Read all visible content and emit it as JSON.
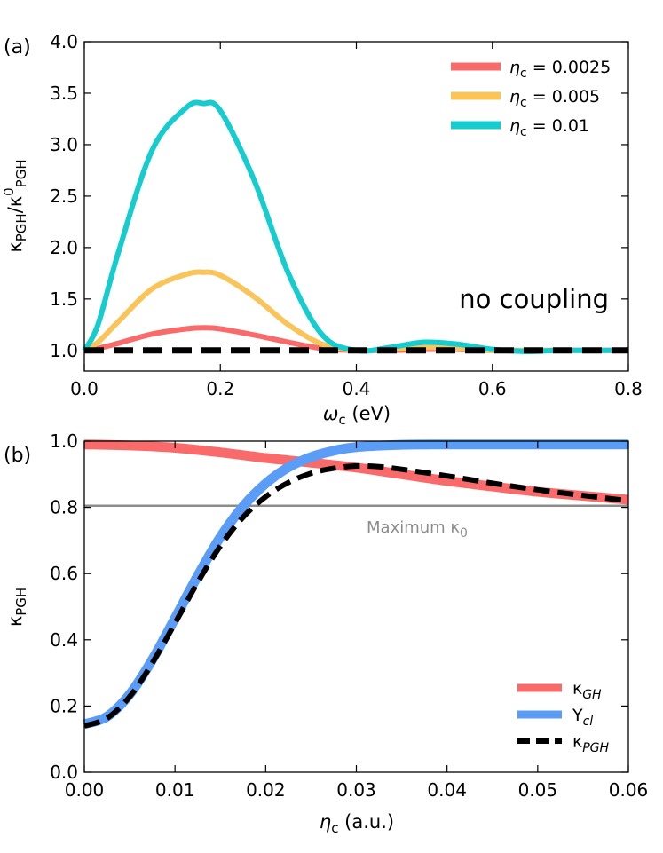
{
  "chart_data": [
    {
      "type": "line",
      "panel_label": "(a)",
      "xlabel": {
        "main": "ω",
        "sub": "c",
        "unit": " (eV)"
      },
      "ylabel": {
        "k1": "κ",
        "sub1": "PGH",
        "slash": "/κ",
        "sup": "0",
        "sub2": "PGH"
      },
      "xlim": [
        0.0,
        0.8
      ],
      "ylim": [
        0.8,
        4.0
      ],
      "xticks": [
        0.0,
        0.2,
        0.4,
        0.6,
        0.8
      ],
      "xtick_labels": [
        "0.0",
        "0.2",
        "0.4",
        "0.6",
        "0.8"
      ],
      "yticks": [
        1.0,
        1.5,
        2.0,
        2.5,
        3.0,
        3.5,
        4.0
      ],
      "ytick_labels": [
        "1.0",
        "1.5",
        "2.0",
        "2.5",
        "3.0",
        "3.5",
        "4.0"
      ],
      "annotation": "no coupling",
      "legend_position": "top-right",
      "series": [
        {
          "eta": "η",
          "sub": "c",
          "value_label": " = 0.0025",
          "color": "#f96b6b",
          "x": [
            0.0,
            0.02,
            0.05,
            0.1,
            0.15,
            0.175,
            0.2,
            0.25,
            0.3,
            0.35,
            0.4,
            0.45,
            0.5,
            0.55,
            0.6,
            0.7,
            0.8
          ],
          "y": [
            1.0,
            1.02,
            1.07,
            1.16,
            1.21,
            1.22,
            1.21,
            1.15,
            1.08,
            1.02,
            1.0,
            1.0,
            1.01,
            1.01,
            1.0,
            1.0,
            1.0
          ]
        },
        {
          "eta": "η",
          "sub": "c",
          "value_label": " = 0.005",
          "color": "#f9c55a",
          "x": [
            0.0,
            0.02,
            0.05,
            0.1,
            0.15,
            0.175,
            0.2,
            0.25,
            0.3,
            0.35,
            0.4,
            0.45,
            0.5,
            0.55,
            0.6,
            0.7,
            0.8
          ],
          "y": [
            1.0,
            1.08,
            1.28,
            1.6,
            1.74,
            1.76,
            1.73,
            1.52,
            1.25,
            1.06,
            1.0,
            1.01,
            1.03,
            1.02,
            1.0,
            1.0,
            1.0
          ]
        },
        {
          "eta": "η",
          "sub": "c",
          "value_label": " = 0.01",
          "color": "#17ccce",
          "x": [
            0.0,
            0.02,
            0.05,
            0.1,
            0.15,
            0.175,
            0.2,
            0.25,
            0.3,
            0.35,
            0.4,
            0.45,
            0.5,
            0.55,
            0.6,
            0.65,
            0.7,
            0.8
          ],
          "y": [
            1.0,
            1.25,
            1.95,
            2.95,
            3.36,
            3.4,
            3.33,
            2.65,
            1.75,
            1.15,
            1.0,
            1.03,
            1.08,
            1.06,
            1.01,
            0.99,
            1.0,
            1.0
          ]
        },
        {
          "name": "no coupling",
          "color": "#000000",
          "dashed": true,
          "x": [
            0.0,
            0.8
          ],
          "y": [
            1.0,
            1.0
          ]
        }
      ]
    },
    {
      "type": "line",
      "panel_label": "(b)",
      "xlabel": {
        "main": "η",
        "sub": "c",
        "unit": " (a.u.)"
      },
      "ylabel": {
        "k1": "κ",
        "sub1": "PGH"
      },
      "xlim": [
        0.0,
        0.06
      ],
      "ylim": [
        0.0,
        1.0
      ],
      "xticks": [
        0.0,
        0.01,
        0.02,
        0.03,
        0.04,
        0.05,
        0.06
      ],
      "xtick_labels": [
        "0.00",
        "0.01",
        "0.02",
        "0.03",
        "0.04",
        "0.05",
        "0.06"
      ],
      "yticks": [
        0.0,
        0.2,
        0.4,
        0.6,
        0.8,
        1.0
      ],
      "ytick_labels": [
        "0.0",
        "0.2",
        "0.4",
        "0.6",
        "0.8",
        "1.0"
      ],
      "reference_line": {
        "y": 0.805,
        "label": "Maximum κ",
        "sub": "0",
        "color": "#8c8c8c"
      },
      "legend_position": "bottom-right",
      "series": [
        {
          "name": "κ",
          "sub": "GH",
          "color": "#f96b6b",
          "x": [
            0.0,
            0.005,
            0.01,
            0.015,
            0.02,
            0.025,
            0.03,
            0.035,
            0.04,
            0.045,
            0.05,
            0.055,
            0.06
          ],
          "y": [
            0.99,
            0.987,
            0.98,
            0.966,
            0.949,
            0.935,
            0.92,
            0.9,
            0.88,
            0.863,
            0.847,
            0.835,
            0.823
          ]
        },
        {
          "name": "Y",
          "sub": "cl",
          "color": "#5b9cf6",
          "x": [
            0.0,
            0.0025,
            0.005,
            0.0075,
            0.01,
            0.0125,
            0.015,
            0.0175,
            0.02,
            0.0225,
            0.025,
            0.0275,
            0.03,
            0.035,
            0.04,
            0.05,
            0.06
          ],
          "y": [
            0.145,
            0.168,
            0.235,
            0.34,
            0.465,
            0.593,
            0.71,
            0.803,
            0.872,
            0.921,
            0.952,
            0.971,
            0.982,
            0.989,
            0.99,
            0.99,
            0.99
          ]
        },
        {
          "name": "κ",
          "sub": "PGH",
          "color": "#000000",
          "dashed": true,
          "x": [
            0.0,
            0.0025,
            0.005,
            0.0075,
            0.01,
            0.0125,
            0.015,
            0.0175,
            0.02,
            0.0225,
            0.025,
            0.0275,
            0.03,
            0.0325,
            0.035,
            0.04,
            0.045,
            0.05,
            0.055,
            0.06
          ],
          "y": [
            0.14,
            0.163,
            0.228,
            0.33,
            0.45,
            0.573,
            0.683,
            0.77,
            0.832,
            0.875,
            0.903,
            0.918,
            0.925,
            0.923,
            0.915,
            0.895,
            0.873,
            0.853,
            0.836,
            0.82
          ]
        }
      ]
    }
  ]
}
